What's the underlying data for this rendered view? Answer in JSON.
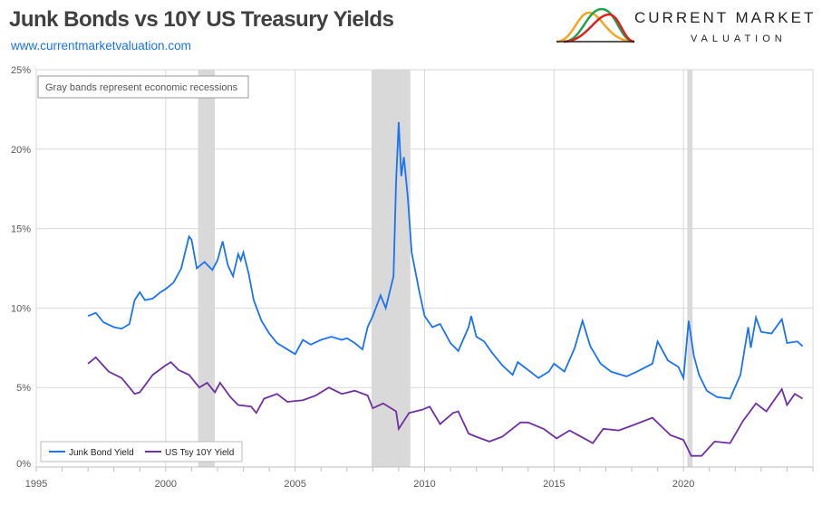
{
  "header": {
    "title": "Junk Bonds vs 10Y US Treasury Yields",
    "subtitle": "www.currentmarketvaluation.com"
  },
  "logo": {
    "line1": "CURRENT MARKET",
    "line2": "VALUATION",
    "colors": [
      "#f5a623",
      "#1aa64a",
      "#e02020"
    ]
  },
  "chart_data": {
    "type": "line",
    "title": "Junk Bonds vs 10Y US Treasury Yields",
    "xlim": [
      1995,
      2025
    ],
    "ylim": [
      0,
      25
    ],
    "x_ticks": [
      "1995",
      "2000",
      "2005",
      "2010",
      "2015",
      "2020"
    ],
    "y_ticks": [
      "0%",
      "5%",
      "10%",
      "15%",
      "20%",
      "25%"
    ],
    "grid": true,
    "legend_placement": "bottom-left",
    "annotation": "Gray bands represent economic recessions",
    "recessions": [
      [
        2001.25,
        2001.9
      ],
      [
        2007.95,
        2009.45
      ],
      [
        2020.15,
        2020.35
      ]
    ],
    "series": [
      {
        "name": "Junk Bond Yield",
        "color": "#1a73f5",
        "points": [
          [
            1997.0,
            9.5
          ],
          [
            1997.3,
            9.7
          ],
          [
            1997.6,
            9.1
          ],
          [
            1998.0,
            8.8
          ],
          [
            1998.3,
            8.7
          ],
          [
            1998.6,
            9.0
          ],
          [
            1998.8,
            10.5
          ],
          [
            1999.0,
            11.0
          ],
          [
            1999.2,
            10.5
          ],
          [
            1999.5,
            10.6
          ],
          [
            1999.8,
            11.0
          ],
          [
            2000.0,
            11.2
          ],
          [
            2000.3,
            11.6
          ],
          [
            2000.6,
            12.5
          ],
          [
            2000.9,
            14.5
          ],
          [
            2001.0,
            14.3
          ],
          [
            2001.2,
            12.5
          ],
          [
            2001.5,
            12.9
          ],
          [
            2001.8,
            12.4
          ],
          [
            2002.0,
            13.0
          ],
          [
            2002.2,
            14.2
          ],
          [
            2002.4,
            12.7
          ],
          [
            2002.6,
            12.0
          ],
          [
            2002.8,
            13.4
          ],
          [
            2002.9,
            13.0
          ],
          [
            2003.0,
            13.5
          ],
          [
            2003.2,
            12.2
          ],
          [
            2003.4,
            10.5
          ],
          [
            2003.7,
            9.2
          ],
          [
            2004.0,
            8.4
          ],
          [
            2004.3,
            7.8
          ],
          [
            2004.7,
            7.4
          ],
          [
            2005.0,
            7.1
          ],
          [
            2005.3,
            8.0
          ],
          [
            2005.6,
            7.7
          ],
          [
            2006.0,
            8.0
          ],
          [
            2006.4,
            8.2
          ],
          [
            2006.8,
            8.0
          ],
          [
            2007.0,
            8.1
          ],
          [
            2007.3,
            7.8
          ],
          [
            2007.6,
            7.4
          ],
          [
            2007.8,
            8.8
          ],
          [
            2008.0,
            9.5
          ],
          [
            2008.3,
            10.8
          ],
          [
            2008.5,
            10.0
          ],
          [
            2008.8,
            12.0
          ],
          [
            2008.9,
            18.0
          ],
          [
            2009.0,
            21.7
          ],
          [
            2009.1,
            18.3
          ],
          [
            2009.2,
            19.5
          ],
          [
            2009.35,
            17.0
          ],
          [
            2009.5,
            13.5
          ],
          [
            2009.8,
            11.0
          ],
          [
            2010.0,
            9.5
          ],
          [
            2010.3,
            8.8
          ],
          [
            2010.6,
            9.0
          ],
          [
            2011.0,
            7.8
          ],
          [
            2011.3,
            7.3
          ],
          [
            2011.7,
            8.8
          ],
          [
            2011.8,
            9.5
          ],
          [
            2012.0,
            8.2
          ],
          [
            2012.3,
            7.9
          ],
          [
            2012.6,
            7.2
          ],
          [
            2013.0,
            6.4
          ],
          [
            2013.4,
            5.8
          ],
          [
            2013.6,
            6.6
          ],
          [
            2014.0,
            6.1
          ],
          [
            2014.4,
            5.6
          ],
          [
            2014.8,
            6.0
          ],
          [
            2015.0,
            6.5
          ],
          [
            2015.4,
            6.0
          ],
          [
            2015.8,
            7.5
          ],
          [
            2016.1,
            9.2
          ],
          [
            2016.4,
            7.6
          ],
          [
            2016.8,
            6.5
          ],
          [
            2017.2,
            6.0
          ],
          [
            2017.8,
            5.7
          ],
          [
            2018.2,
            6.0
          ],
          [
            2018.8,
            6.5
          ],
          [
            2019.0,
            7.9
          ],
          [
            2019.4,
            6.7
          ],
          [
            2019.8,
            6.3
          ],
          [
            2020.0,
            5.6
          ],
          [
            2020.2,
            9.2
          ],
          [
            2020.4,
            7.0
          ],
          [
            2020.6,
            5.8
          ],
          [
            2020.9,
            4.8
          ],
          [
            2021.3,
            4.4
          ],
          [
            2021.8,
            4.3
          ],
          [
            2022.2,
            5.8
          ],
          [
            2022.5,
            8.8
          ],
          [
            2022.6,
            7.5
          ],
          [
            2022.8,
            9.4
          ],
          [
            2023.0,
            8.5
          ],
          [
            2023.4,
            8.4
          ],
          [
            2023.8,
            9.3
          ],
          [
            2024.0,
            7.8
          ],
          [
            2024.4,
            7.9
          ],
          [
            2024.6,
            7.6
          ]
        ]
      },
      {
        "name": "US Tsy 10Y Yield",
        "color": "#7030a0",
        "points": [
          [
            1997.0,
            6.5
          ],
          [
            1997.3,
            6.9
          ],
          [
            1997.8,
            6.0
          ],
          [
            1998.3,
            5.6
          ],
          [
            1998.8,
            4.6
          ],
          [
            1999.0,
            4.7
          ],
          [
            1999.5,
            5.8
          ],
          [
            2000.0,
            6.4
          ],
          [
            2000.2,
            6.6
          ],
          [
            2000.5,
            6.1
          ],
          [
            2000.9,
            5.8
          ],
          [
            2001.3,
            5.0
          ],
          [
            2001.6,
            5.3
          ],
          [
            2001.9,
            4.7
          ],
          [
            2002.1,
            5.3
          ],
          [
            2002.5,
            4.4
          ],
          [
            2002.8,
            3.9
          ],
          [
            2003.3,
            3.8
          ],
          [
            2003.5,
            3.4
          ],
          [
            2003.8,
            4.3
          ],
          [
            2004.3,
            4.6
          ],
          [
            2004.7,
            4.1
          ],
          [
            2005.3,
            4.2
          ],
          [
            2005.8,
            4.5
          ],
          [
            2006.3,
            5.0
          ],
          [
            2006.8,
            4.6
          ],
          [
            2007.3,
            4.8
          ],
          [
            2007.8,
            4.5
          ],
          [
            2008.0,
            3.7
          ],
          [
            2008.4,
            4.0
          ],
          [
            2008.9,
            3.5
          ],
          [
            2009.0,
            2.4
          ],
          [
            2009.4,
            3.4
          ],
          [
            2009.9,
            3.6
          ],
          [
            2010.2,
            3.8
          ],
          [
            2010.6,
            2.7
          ],
          [
            2011.1,
            3.4
          ],
          [
            2011.3,
            3.5
          ],
          [
            2011.7,
            2.1
          ],
          [
            2012.0,
            1.9
          ],
          [
            2012.5,
            1.6
          ],
          [
            2013.0,
            1.9
          ],
          [
            2013.7,
            2.8
          ],
          [
            2014.0,
            2.8
          ],
          [
            2014.6,
            2.4
          ],
          [
            2015.1,
            1.8
          ],
          [
            2015.6,
            2.3
          ],
          [
            2016.5,
            1.5
          ],
          [
            2016.9,
            2.4
          ],
          [
            2017.5,
            2.3
          ],
          [
            2018.0,
            2.6
          ],
          [
            2018.8,
            3.1
          ],
          [
            2019.5,
            2.0
          ],
          [
            2020.0,
            1.7
          ],
          [
            2020.3,
            0.7
          ],
          [
            2020.7,
            0.7
          ],
          [
            2021.2,
            1.6
          ],
          [
            2021.8,
            1.5
          ],
          [
            2022.3,
            2.9
          ],
          [
            2022.8,
            4.0
          ],
          [
            2023.2,
            3.5
          ],
          [
            2023.8,
            4.9
          ],
          [
            2024.0,
            3.9
          ],
          [
            2024.3,
            4.6
          ],
          [
            2024.6,
            4.3
          ]
        ]
      }
    ]
  }
}
